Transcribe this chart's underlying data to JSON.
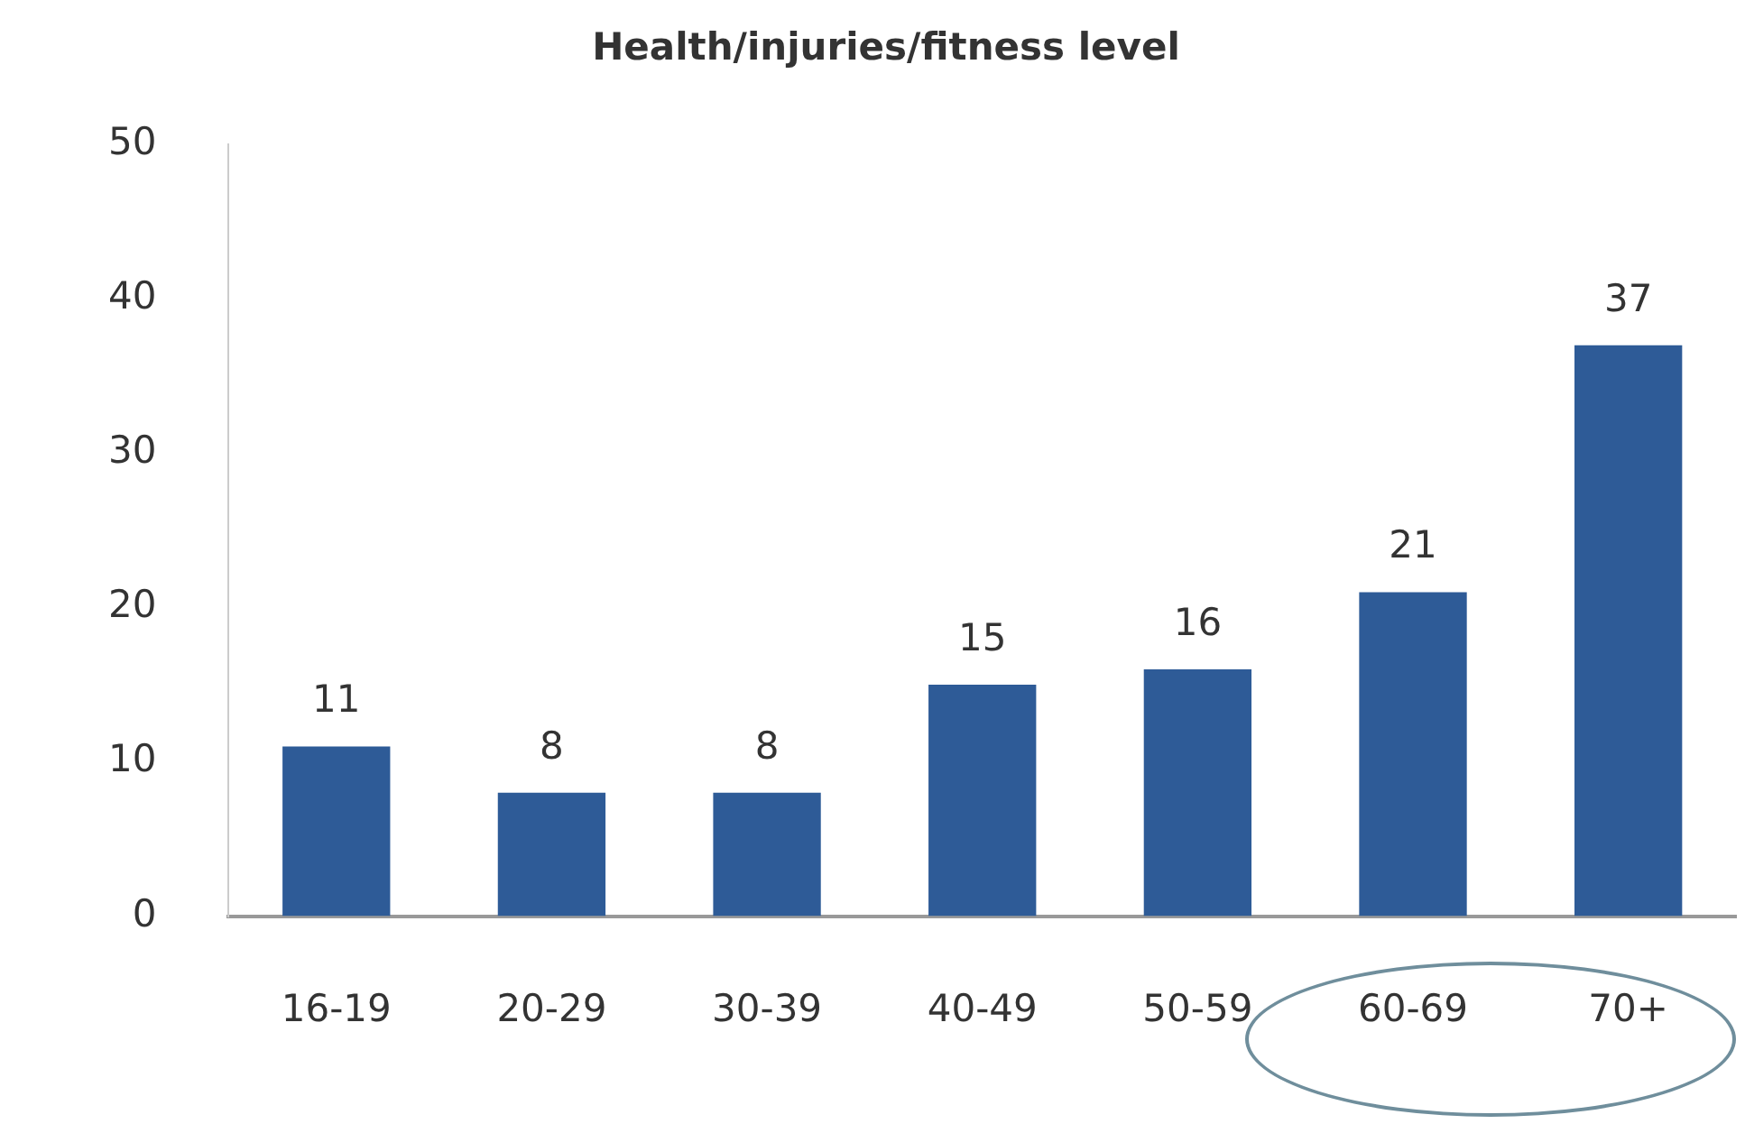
{
  "chart_data": {
    "type": "bar",
    "title": "Health/injuries/fitness level",
    "categories": [
      "16-19",
      "20-29",
      "30-39",
      "40-49",
      "50-59",
      "60-69",
      "70+"
    ],
    "values": [
      11,
      8,
      8,
      15,
      16,
      21,
      37
    ],
    "color": "#2e5b97",
    "ylim": [
      0,
      50
    ],
    "yticks": [
      0,
      10,
      20,
      30,
      40,
      50
    ],
    "grid": false,
    "legend": false,
    "data_labels": true
  }
}
